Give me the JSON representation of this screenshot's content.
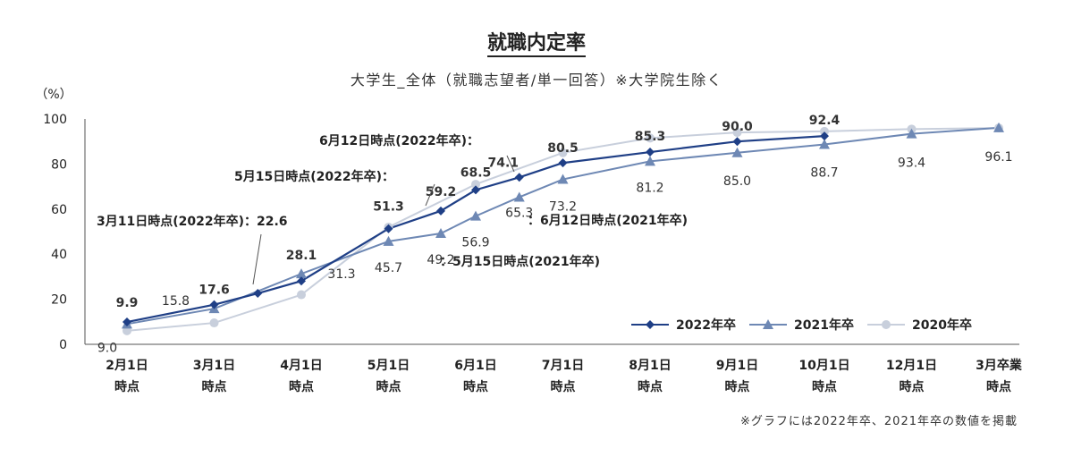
{
  "chart_data": {
    "type": "line",
    "title": "就職内定率",
    "subtitle": "大学生_全体（就職志望者/単一回答）※大学院生除く",
    "ylabel": "（%）",
    "ylim": [
      0,
      100
    ],
    "yticks": [
      "0",
      "20",
      "40",
      "60",
      "80",
      "100"
    ],
    "categories": [
      [
        "2月1日",
        "時点"
      ],
      [
        "3月1日",
        "時点"
      ],
      [
        "4月1日",
        "時点"
      ],
      [
        "5月1日",
        "時点"
      ],
      [
        "6月1日",
        "時点"
      ],
      [
        "7月1日",
        "時点"
      ],
      [
        "8月1日",
        "時点"
      ],
      [
        "9月1日",
        "時点"
      ],
      [
        "10月1日",
        "時点"
      ],
      [
        "12月1日",
        "時点"
      ],
      [
        "3月卒業",
        "時点"
      ]
    ],
    "series": [
      {
        "name": "2022年卒",
        "color": "#1f3f86",
        "marker": "diamond",
        "x": [
          0,
          1,
          1.5,
          2,
          3,
          3.6,
          4,
          4.5,
          5,
          6,
          7,
          8
        ],
        "values": [
          9.9,
          17.6,
          22.6,
          28.1,
          51.3,
          59.2,
          68.5,
          74.1,
          80.5,
          85.3,
          90.0,
          92.4
        ],
        "labels": [
          "9.9",
          "17.6",
          "",
          "28.1",
          "51.3",
          "59.2",
          "68.5",
          "74.1",
          "80.5",
          "85.3",
          "90.0",
          "92.4"
        ]
      },
      {
        "name": "2021年卒",
        "color": "#6e88b4",
        "marker": "triangle",
        "x": [
          0,
          1,
          2,
          3,
          3.6,
          4,
          4.5,
          5,
          6,
          7,
          8,
          9,
          10
        ],
        "values": [
          9.0,
          15.8,
          31.3,
          45.7,
          49.2,
          56.9,
          65.3,
          73.2,
          81.2,
          85.0,
          88.7,
          93.4,
          96.1
        ],
        "labels": [
          "9.0",
          "15.8",
          "31.3",
          "45.7",
          "49.2",
          "56.9",
          "65.3",
          "73.2",
          "81.2",
          "85.0",
          "88.7",
          "93.4",
          "96.1"
        ]
      },
      {
        "name": "2020年卒",
        "color": "#c8cfdc",
        "marker": "circle",
        "x": [
          0,
          1,
          2,
          3,
          4,
          5,
          6,
          7,
          8,
          9,
          10
        ],
        "values": [
          6,
          9.5,
          22,
          52,
          71,
          85,
          91.5,
          94,
          94.5,
          95.5,
          96
        ]
      }
    ],
    "annotations": [
      "3月11日時点(2022年卒)：22.6",
      "5月15日時点(2022年卒)：",
      "6月12日時点(2022年卒)：",
      "：6月12日時点(2021年卒)",
      "：5月15日時点(2021年卒)"
    ],
    "legend_position": "bottom-right",
    "grid": false
  },
  "note": "※グラフには2022年卒、2021年卒の数値を掲載"
}
